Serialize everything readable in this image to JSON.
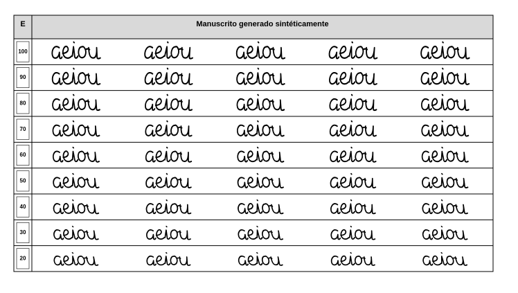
{
  "table": {
    "header": {
      "corner": "E",
      "title": "Manuscrito generado sintéticamente"
    },
    "rows": [
      {
        "label": "100"
      },
      {
        "label": "90"
      },
      {
        "label": "80"
      },
      {
        "label": "70"
      },
      {
        "label": "60"
      },
      {
        "label": "50"
      },
      {
        "label": "40"
      },
      {
        "label": "30"
      },
      {
        "label": "20"
      }
    ]
  }
}
